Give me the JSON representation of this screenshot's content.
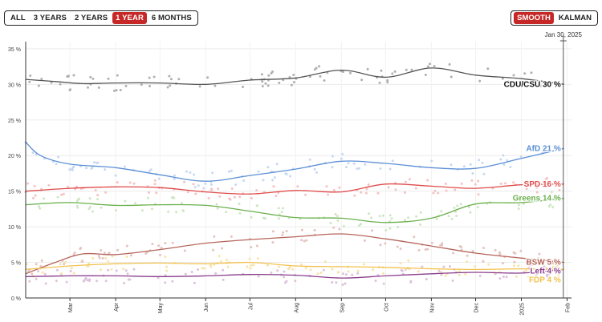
{
  "controls": {
    "ranges": [
      "ALL",
      "3 YEARS",
      "2 YEARS",
      "1 YEAR",
      "6 MONTHS"
    ],
    "active_range": "1 YEAR",
    "models": [
      "SMOOTH",
      "KALMAN"
    ],
    "active_model": "SMOOTH"
  },
  "cursor_date": "Jan 30, 2025",
  "chart_data": {
    "type": "line",
    "x_start": "2024-01-31",
    "x_end": "2025-02-04",
    "ylim": [
      0,
      36
    ],
    "y_ticks": [
      0,
      5,
      10,
      15,
      20,
      25,
      30,
      35
    ],
    "y_tick_labels": [
      "0 %",
      "5 %",
      "10 %",
      "15 %",
      "20 %",
      "25 %",
      "30 %",
      "35 %"
    ],
    "x_ticks": [
      {
        "date": "2024-03-01",
        "label": "Mar"
      },
      {
        "date": "2024-04-01",
        "label": "Apr"
      },
      {
        "date": "2024-05-01",
        "label": "May"
      },
      {
        "date": "2024-06-01",
        "label": "Jun"
      },
      {
        "date": "2024-07-01",
        "label": "Jul"
      },
      {
        "date": "2024-08-01",
        "label": "Aug"
      },
      {
        "date": "2024-09-01",
        "label": "Sep"
      },
      {
        "date": "2024-10-01",
        "label": "Oct"
      },
      {
        "date": "2024-11-01",
        "label": "Nov"
      },
      {
        "date": "2024-12-01",
        "label": "Dec"
      },
      {
        "date": "2025-01-01",
        "label": "2025"
      },
      {
        "date": "2025-02-01",
        "label": "Feb"
      }
    ],
    "grid": true,
    "series": [
      {
        "name": "CDU/CSU",
        "color": "#555555",
        "dot_color": "#b0b0b0",
        "current_label": "30 %",
        "points": [
          [
            "2024-01-31",
            30.7
          ],
          [
            "2024-02-20",
            30.4
          ],
          [
            "2024-03-10",
            30.1
          ],
          [
            "2024-04-01",
            30.2
          ],
          [
            "2024-05-01",
            30.2
          ],
          [
            "2024-06-01",
            30.0
          ],
          [
            "2024-07-01",
            30.6
          ],
          [
            "2024-08-01",
            30.9
          ],
          [
            "2024-09-01",
            32.0
          ],
          [
            "2024-10-01",
            31.0
          ],
          [
            "2024-11-01",
            32.3
          ],
          [
            "2024-12-01",
            31.3
          ],
          [
            "2025-01-01",
            30.8
          ],
          [
            "2025-01-30",
            30.0
          ]
        ]
      },
      {
        "name": "AfD",
        "color": "#5b8fd6",
        "dot_color": "#c7d8f2",
        "current_label": "21 %",
        "points": [
          [
            "2024-01-31",
            21.9
          ],
          [
            "2024-02-10",
            20.0
          ],
          [
            "2024-03-01",
            18.8
          ],
          [
            "2024-04-01",
            18.3
          ],
          [
            "2024-05-01",
            17.3
          ],
          [
            "2024-06-01",
            16.4
          ],
          [
            "2024-07-01",
            17.2
          ],
          [
            "2024-08-01",
            18.1
          ],
          [
            "2024-09-01",
            19.2
          ],
          [
            "2024-10-01",
            18.9
          ],
          [
            "2024-11-01",
            18.3
          ],
          [
            "2024-12-01",
            18.2
          ],
          [
            "2025-01-01",
            19.6
          ],
          [
            "2025-01-30",
            21.0
          ]
        ]
      },
      {
        "name": "SPD",
        "color": "#e04b4b",
        "dot_color": "#f5c2c2",
        "current_label": "16 %",
        "points": [
          [
            "2024-01-31",
            15.0
          ],
          [
            "2024-03-01",
            15.4
          ],
          [
            "2024-04-01",
            15.6
          ],
          [
            "2024-05-01",
            15.5
          ],
          [
            "2024-06-01",
            14.9
          ],
          [
            "2024-07-01",
            14.6
          ],
          [
            "2024-08-01",
            15.1
          ],
          [
            "2024-09-01",
            14.9
          ],
          [
            "2024-10-01",
            16.0
          ],
          [
            "2024-11-01",
            15.7
          ],
          [
            "2024-12-01",
            15.4
          ],
          [
            "2025-01-01",
            15.9
          ],
          [
            "2025-01-30",
            16.0
          ]
        ]
      },
      {
        "name": "Greens",
        "color": "#6ab04c",
        "dot_color": "#cfe6c3",
        "current_label": "14 %",
        "points": [
          [
            "2024-01-31",
            13.1
          ],
          [
            "2024-03-01",
            13.4
          ],
          [
            "2024-04-01",
            13.0
          ],
          [
            "2024-05-01",
            13.1
          ],
          [
            "2024-06-01",
            13.0
          ],
          [
            "2024-07-01",
            12.2
          ],
          [
            "2024-08-01",
            11.3
          ],
          [
            "2024-09-01",
            11.2
          ],
          [
            "2024-10-01",
            10.6
          ],
          [
            "2024-11-01",
            11.2
          ],
          [
            "2024-12-01",
            13.2
          ],
          [
            "2025-01-01",
            13.4
          ],
          [
            "2025-01-30",
            14.0
          ]
        ]
      },
      {
        "name": "BSW",
        "color": "#b5655a",
        "dot_color": "#e4c4be",
        "current_label": "5 %",
        "points": [
          [
            "2024-01-31",
            3.4
          ],
          [
            "2024-02-20",
            5.0
          ],
          [
            "2024-03-10",
            6.2
          ],
          [
            "2024-04-01",
            6.1
          ],
          [
            "2024-05-01",
            6.8
          ],
          [
            "2024-06-01",
            7.7
          ],
          [
            "2024-07-01",
            8.2
          ],
          [
            "2024-08-01",
            8.6
          ],
          [
            "2024-09-01",
            9.0
          ],
          [
            "2024-10-01",
            8.3
          ],
          [
            "2024-11-01",
            7.3
          ],
          [
            "2024-12-01",
            6.3
          ],
          [
            "2025-01-01",
            5.6
          ],
          [
            "2025-01-30",
            5.0
          ]
        ]
      },
      {
        "name": "Left",
        "color": "#8a3d8c",
        "dot_color": "#dcc3dc",
        "current_label": "4 %",
        "points": [
          [
            "2024-01-31",
            3.0
          ],
          [
            "2024-03-01",
            3.1
          ],
          [
            "2024-04-01",
            3.1
          ],
          [
            "2024-05-01",
            3.0
          ],
          [
            "2024-06-01",
            3.1
          ],
          [
            "2024-07-01",
            3.3
          ],
          [
            "2024-08-01",
            3.2
          ],
          [
            "2024-09-01",
            2.8
          ],
          [
            "2024-10-01",
            3.1
          ],
          [
            "2024-11-01",
            3.4
          ],
          [
            "2024-12-01",
            3.6
          ],
          [
            "2025-01-01",
            3.5
          ],
          [
            "2025-01-30",
            4.0
          ]
        ]
      },
      {
        "name": "FDP",
        "color": "#f2c14e",
        "dot_color": "#f8e3a8",
        "current_label": "4 %",
        "points": [
          [
            "2024-01-31",
            4.0
          ],
          [
            "2024-03-01",
            4.5
          ],
          [
            "2024-04-01",
            4.8
          ],
          [
            "2024-05-01",
            4.9
          ],
          [
            "2024-06-01",
            4.8
          ],
          [
            "2024-07-01",
            5.0
          ],
          [
            "2024-08-01",
            4.5
          ],
          [
            "2024-09-01",
            4.4
          ],
          [
            "2024-10-01",
            4.3
          ],
          [
            "2024-11-01",
            4.1
          ],
          [
            "2024-12-01",
            4.0
          ],
          [
            "2025-01-01",
            4.1
          ],
          [
            "2025-01-30",
            4.0
          ]
        ]
      }
    ]
  }
}
